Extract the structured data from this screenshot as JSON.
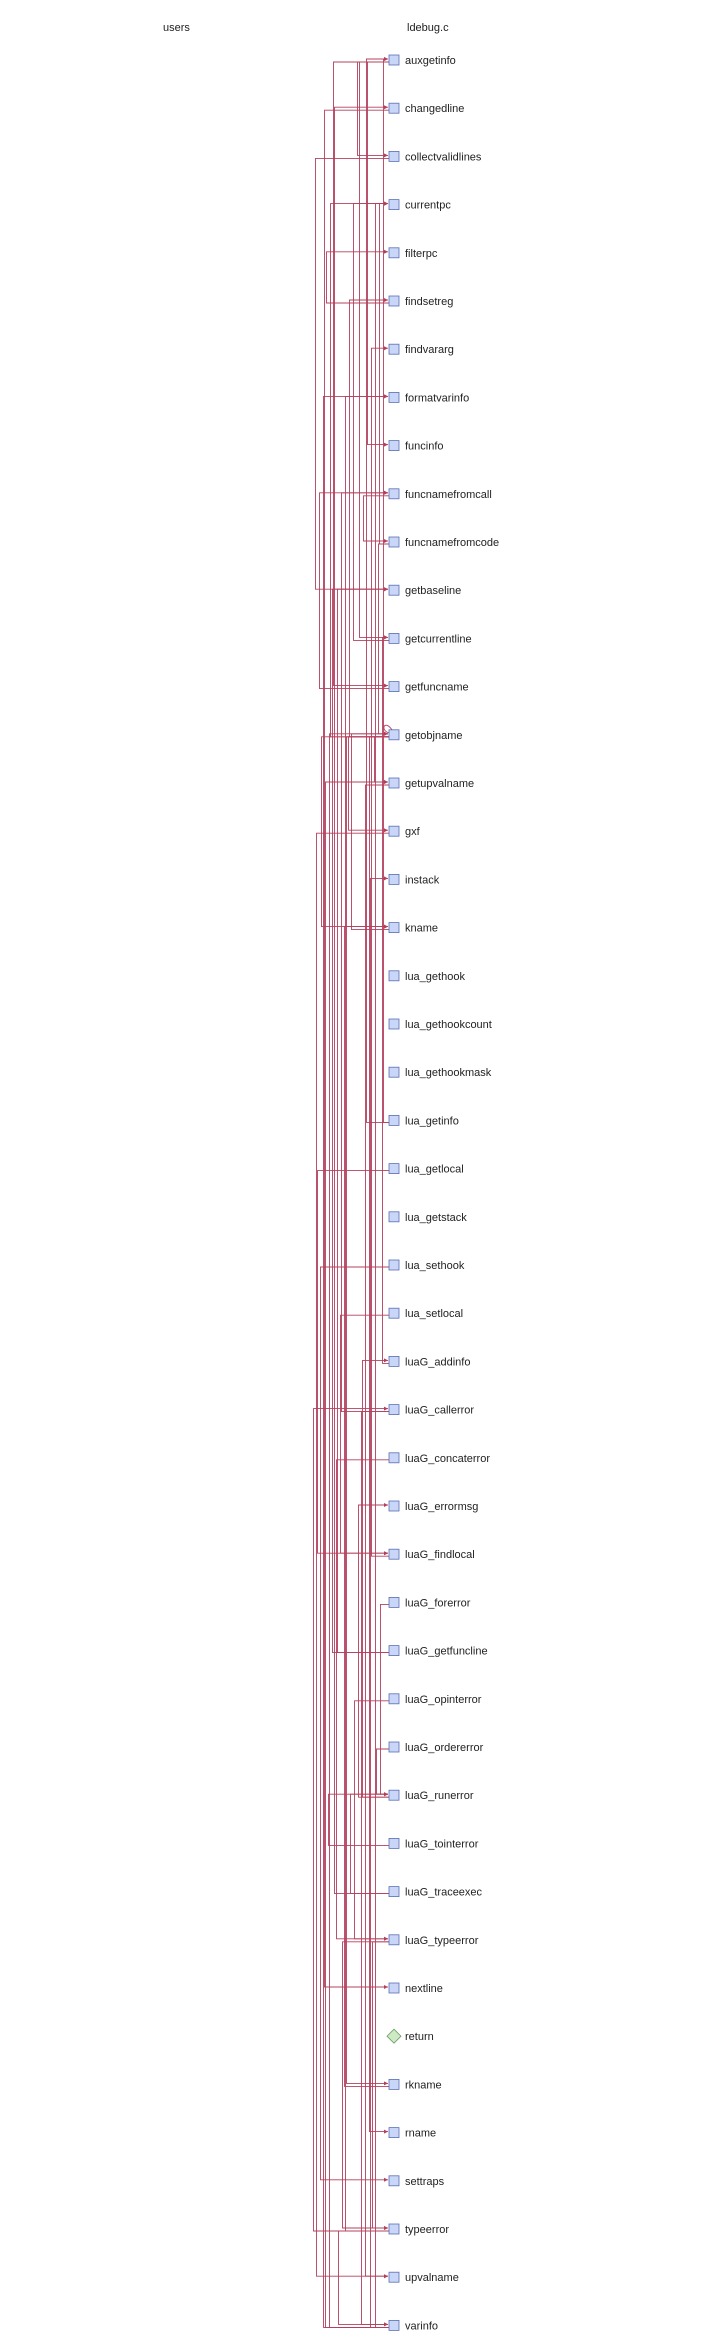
{
  "headers": {
    "left": "users",
    "right": "ldebug.c"
  },
  "colors": {
    "edge": "#b3405e",
    "function_node": "#c9d6f7",
    "return_node": "#cdeac5"
  },
  "nodes": [
    {
      "label": "auxgetinfo",
      "kind": "function",
      "icon": "square-node-icon"
    },
    {
      "label": "changedline",
      "kind": "function",
      "icon": "square-node-icon"
    },
    {
      "label": "collectvalidlines",
      "kind": "function",
      "icon": "square-node-icon"
    },
    {
      "label": "currentpc",
      "kind": "function",
      "icon": "square-node-icon"
    },
    {
      "label": "filterpc",
      "kind": "function",
      "icon": "square-node-icon"
    },
    {
      "label": "findsetreg",
      "kind": "function",
      "icon": "square-node-icon"
    },
    {
      "label": "findvararg",
      "kind": "function",
      "icon": "square-node-icon"
    },
    {
      "label": "formatvarinfo",
      "kind": "function",
      "icon": "square-node-icon"
    },
    {
      "label": "funcinfo",
      "kind": "function",
      "icon": "square-node-icon"
    },
    {
      "label": "funcnamefromcall",
      "kind": "function",
      "icon": "square-node-icon"
    },
    {
      "label": "funcnamefromcode",
      "kind": "function",
      "icon": "square-node-icon"
    },
    {
      "label": "getbaseline",
      "kind": "function",
      "icon": "square-node-icon"
    },
    {
      "label": "getcurrentline",
      "kind": "function",
      "icon": "square-node-icon"
    },
    {
      "label": "getfuncname",
      "kind": "function",
      "icon": "square-node-icon"
    },
    {
      "label": "getobjname",
      "kind": "function",
      "icon": "square-node-icon"
    },
    {
      "label": "getupvalname",
      "kind": "function",
      "icon": "square-node-icon"
    },
    {
      "label": "gxf",
      "kind": "function",
      "icon": "square-node-icon"
    },
    {
      "label": "instack",
      "kind": "function",
      "icon": "square-node-icon"
    },
    {
      "label": "kname",
      "kind": "function",
      "icon": "square-node-icon"
    },
    {
      "label": "lua_gethook",
      "kind": "function",
      "icon": "square-node-icon"
    },
    {
      "label": "lua_gethookcount",
      "kind": "function",
      "icon": "square-node-icon"
    },
    {
      "label": "lua_gethookmask",
      "kind": "function",
      "icon": "square-node-icon"
    },
    {
      "label": "lua_getinfo",
      "kind": "function",
      "icon": "square-node-icon"
    },
    {
      "label": "lua_getlocal",
      "kind": "function",
      "icon": "square-node-icon"
    },
    {
      "label": "lua_getstack",
      "kind": "function",
      "icon": "square-node-icon"
    },
    {
      "label": "lua_sethook",
      "kind": "function",
      "icon": "square-node-icon"
    },
    {
      "label": "lua_setlocal",
      "kind": "function",
      "icon": "square-node-icon"
    },
    {
      "label": "luaG_addinfo",
      "kind": "function",
      "icon": "square-node-icon"
    },
    {
      "label": "luaG_callerror",
      "kind": "function",
      "icon": "square-node-icon"
    },
    {
      "label": "luaG_concaterror",
      "kind": "function",
      "icon": "square-node-icon"
    },
    {
      "label": "luaG_errormsg",
      "kind": "function",
      "icon": "square-node-icon"
    },
    {
      "label": "luaG_findlocal",
      "kind": "function",
      "icon": "square-node-icon"
    },
    {
      "label": "luaG_forerror",
      "kind": "function",
      "icon": "square-node-icon"
    },
    {
      "label": "luaG_getfuncline",
      "kind": "function",
      "icon": "square-node-icon"
    },
    {
      "label": "luaG_opinterror",
      "kind": "function",
      "icon": "square-node-icon"
    },
    {
      "label": "luaG_ordererror",
      "kind": "function",
      "icon": "square-node-icon"
    },
    {
      "label": "luaG_runerror",
      "kind": "function",
      "icon": "square-node-icon"
    },
    {
      "label": "luaG_tointerror",
      "kind": "function",
      "icon": "square-node-icon"
    },
    {
      "label": "luaG_traceexec",
      "kind": "function",
      "icon": "square-node-icon"
    },
    {
      "label": "luaG_typeerror",
      "kind": "function",
      "icon": "square-node-icon"
    },
    {
      "label": "nextline",
      "kind": "function",
      "icon": "square-node-icon"
    },
    {
      "label": "return",
      "kind": "return",
      "icon": "diamond-node-icon"
    },
    {
      "label": "rkname",
      "kind": "function",
      "icon": "square-node-icon"
    },
    {
      "label": "rname",
      "kind": "function",
      "icon": "square-node-icon"
    },
    {
      "label": "settraps",
      "kind": "function",
      "icon": "square-node-icon"
    },
    {
      "label": "typeerror",
      "kind": "function",
      "icon": "square-node-icon"
    },
    {
      "label": "upvalname",
      "kind": "function",
      "icon": "square-node-icon"
    },
    {
      "label": "varinfo",
      "kind": "function",
      "icon": "square-node-icon"
    }
  ],
  "edges": [
    {
      "from": "lua_getinfo",
      "to": "auxgetinfo"
    },
    {
      "from": "luaG_traceexec",
      "to": "changedline"
    },
    {
      "from": "auxgetinfo",
      "to": "collectvalidlines"
    },
    {
      "from": "funcnamefromcode",
      "to": "currentpc"
    },
    {
      "from": "getobjname",
      "to": "currentpc"
    },
    {
      "from": "getcurrentline",
      "to": "currentpc"
    },
    {
      "from": "varinfo",
      "to": "currentpc"
    },
    {
      "from": "findsetreg",
      "to": "filterpc"
    },
    {
      "from": "getobjname",
      "to": "findsetreg"
    },
    {
      "from": "luaG_findlocal",
      "to": "findvararg"
    },
    {
      "from": "varinfo",
      "to": "formatvarinfo"
    },
    {
      "from": "typeerror",
      "to": "formatvarinfo"
    },
    {
      "from": "auxgetinfo",
      "to": "funcinfo"
    },
    {
      "from": "getfuncname",
      "to": "funcnamefromcall"
    },
    {
      "from": "luaG_callerror",
      "to": "funcnamefromcall"
    },
    {
      "from": "funcnamefromcall",
      "to": "funcnamefromcode"
    },
    {
      "from": "collectvalidlines",
      "to": "getbaseline"
    },
    {
      "from": "luaG_getfuncline",
      "to": "getbaseline"
    },
    {
      "from": "auxgetinfo",
      "to": "getcurrentline"
    },
    {
      "from": "luaG_addinfo",
      "to": "getcurrentline"
    },
    {
      "from": "auxgetinfo",
      "to": "getfuncname"
    },
    {
      "from": "getobjname",
      "to": "getobjname"
    },
    {
      "from": "funcnamefromcode",
      "to": "getobjname"
    },
    {
      "from": "varinfo",
      "to": "getobjname"
    },
    {
      "from": "kname",
      "to": "getobjname"
    },
    {
      "from": "getobjname",
      "to": "getupvalname"
    },
    {
      "from": "varinfo",
      "to": "getupvalname"
    },
    {
      "from": "getobjname",
      "to": "gxf"
    },
    {
      "from": "varinfo",
      "to": "instack"
    },
    {
      "from": "getobjname",
      "to": "kname"
    },
    {
      "from": "rkname",
      "to": "kname"
    },
    {
      "from": "lua_getinfo",
      "to": "auxgetinfo"
    },
    {
      "from": "lua_getlocal",
      "to": "luaG_findlocal"
    },
    {
      "from": "lua_setlocal",
      "to": "luaG_findlocal"
    },
    {
      "from": "luaG_runerror",
      "to": "luaG_addinfo"
    },
    {
      "from": "typeerror",
      "to": "luaG_callerror"
    },
    {
      "from": "luaG_concaterror",
      "to": "luaG_typeerror"
    },
    {
      "from": "luaG_runerror",
      "to": "luaG_errormsg"
    },
    {
      "from": "luaG_forerror",
      "to": "luaG_runerror"
    },
    {
      "from": "luaG_getfuncline",
      "to": "getbaseline"
    },
    {
      "from": "luaG_opinterror",
      "to": "luaG_typeerror"
    },
    {
      "from": "luaG_ordererror",
      "to": "luaG_runerror"
    },
    {
      "from": "luaG_tointerror",
      "to": "luaG_runerror"
    },
    {
      "from": "luaG_traceexec",
      "to": "luaG_runerror"
    },
    {
      "from": "luaG_typeerror",
      "to": "typeerror"
    },
    {
      "from": "changedline",
      "to": "nextline"
    },
    {
      "from": "getobjname",
      "to": "rkname"
    },
    {
      "from": "getobjname",
      "to": "rname"
    },
    {
      "from": "lua_sethook",
      "to": "settraps"
    },
    {
      "from": "luaG_typeerror",
      "to": "typeerror"
    },
    {
      "from": "getupvalname",
      "to": "upvalname"
    },
    {
      "from": "gxf",
      "to": "upvalname"
    },
    {
      "from": "typeerror",
      "to": "varinfo"
    },
    {
      "from": "luaG_callerror",
      "to": "varinfo"
    }
  ]
}
